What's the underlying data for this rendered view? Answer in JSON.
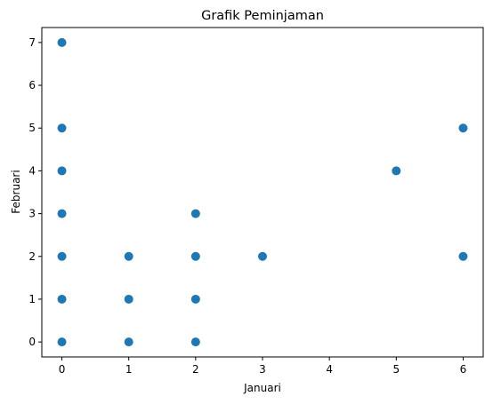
{
  "chart_data": {
    "type": "scatter",
    "title": "Grafik Peminjaman",
    "xlabel": "Januari",
    "ylabel": "Februari",
    "xlim": [
      -0.3,
      6.3
    ],
    "ylim": [
      -0.35,
      7.35
    ],
    "xticks": [
      0,
      1,
      2,
      3,
      4,
      5,
      6
    ],
    "yticks": [
      0,
      1,
      2,
      3,
      4,
      5,
      6,
      7
    ],
    "grid": false,
    "legend": "none",
    "marker_color": "#1f77b4",
    "points": [
      {
        "x": 0,
        "y": 7
      },
      {
        "x": 0,
        "y": 5
      },
      {
        "x": 0,
        "y": 4
      },
      {
        "x": 0,
        "y": 3
      },
      {
        "x": 0,
        "y": 2
      },
      {
        "x": 0,
        "y": 1
      },
      {
        "x": 0,
        "y": 0
      },
      {
        "x": 1,
        "y": 2
      },
      {
        "x": 1,
        "y": 1
      },
      {
        "x": 1,
        "y": 0
      },
      {
        "x": 2,
        "y": 3
      },
      {
        "x": 2,
        "y": 2
      },
      {
        "x": 2,
        "y": 1
      },
      {
        "x": 2,
        "y": 0
      },
      {
        "x": 3,
        "y": 2
      },
      {
        "x": 5,
        "y": 4
      },
      {
        "x": 6,
        "y": 5
      },
      {
        "x": 6,
        "y": 2
      }
    ]
  }
}
